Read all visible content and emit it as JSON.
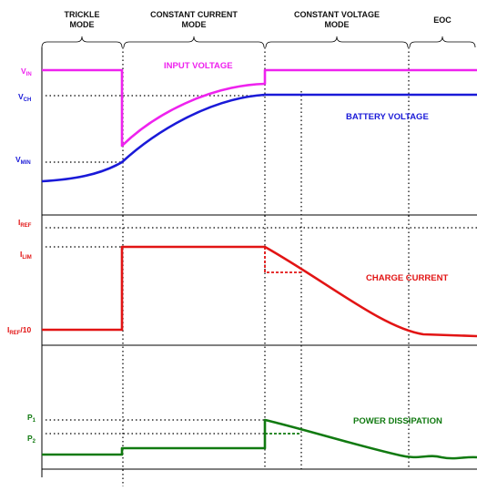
{
  "phases": [
    {
      "line1": "TRICKLE",
      "line2": "MODE"
    },
    {
      "line1": "CONSTANT CURRENT",
      "line2": "MODE"
    },
    {
      "line1": "CONSTANT VOLTAGE",
      "line2": "MODE"
    },
    {
      "line1": "EOC",
      "line2": ""
    }
  ],
  "voltage_panel": {
    "labels": {
      "vin": {
        "main": "V",
        "sub": "IN"
      },
      "vch": {
        "main": "V",
        "sub": "CH"
      },
      "vmin": {
        "main": "V",
        "sub": "MIN"
      }
    },
    "curves": {
      "input": "INPUT VOLTAGE",
      "battery": "BATTERY VOLTAGE"
    }
  },
  "current_panel": {
    "labels": {
      "iref": {
        "main": "I",
        "sub": "REF"
      },
      "ilim": {
        "main": "I",
        "sub": "LIM"
      },
      "iref10": {
        "main": "I",
        "sub": "REF",
        "tail": "/10"
      }
    },
    "curves": {
      "charge": "CHARGE CURRENT"
    }
  },
  "power_panel": {
    "labels": {
      "p1": {
        "main": "P",
        "sub": "1"
      },
      "p2": {
        "main": "P",
        "sub": "2"
      }
    },
    "curves": {
      "dissipation": "POWER DISSIPATION"
    }
  },
  "colors": {
    "input_voltage": "#ee22ee",
    "battery_voltage": "#1a1ad8",
    "charge_current": "#e21414",
    "power_dissipation": "#117a11",
    "label_blue": "#1a1ad8",
    "label_red": "#e21414",
    "label_green": "#117a11",
    "line": "#000000"
  }
}
